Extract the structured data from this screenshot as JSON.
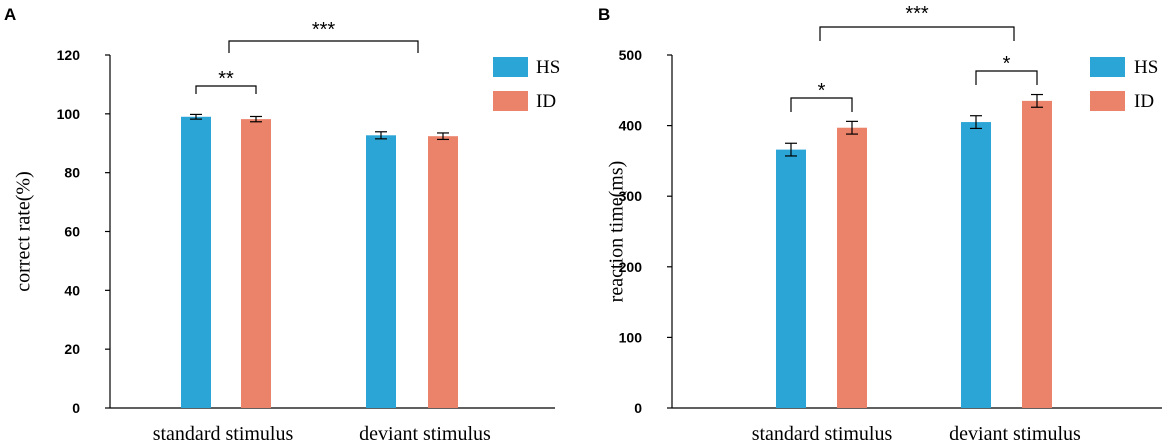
{
  "colors": {
    "HS": "#2aa5d6",
    "ID": "#eb826a"
  },
  "chart_data": [
    {
      "type": "bar",
      "panel": "A",
      "ylabel": "correct rate(%)",
      "xlabel": "",
      "ylim": [
        0,
        120
      ],
      "yticks": [
        "0",
        "20",
        "40",
        "60",
        "80",
        "100",
        "120"
      ],
      "categories": [
        "standard stimulus",
        "deviant stimulus"
      ],
      "legend": [
        "HS",
        "ID"
      ],
      "legend_position": "top-right",
      "series": [
        {
          "name": "HS",
          "values": [
            99,
            92.7
          ],
          "errors": [
            0.8,
            1.2
          ]
        },
        {
          "name": "ID",
          "values": [
            98.2,
            92.4
          ],
          "errors": [
            0.9,
            1.1
          ]
        }
      ],
      "annotations": [
        {
          "label": "**",
          "between": "standard stimulus HS vs ID"
        },
        {
          "label": "***",
          "between": "standard stimulus vs deviant stimulus"
        }
      ]
    },
    {
      "type": "bar",
      "panel": "B",
      "ylabel": "reaction time(ms)",
      "xlabel": "",
      "ylim": [
        0,
        500
      ],
      "yticks": [
        "0",
        "100",
        "200",
        "300",
        "400",
        "500"
      ],
      "categories": [
        "standard stimulus",
        "deviant stimulus"
      ],
      "legend": [
        "HS",
        "ID"
      ],
      "legend_position": "top-right",
      "series": [
        {
          "name": "HS",
          "values": [
            366,
            405
          ],
          "errors": [
            9,
            9
          ]
        },
        {
          "name": "ID",
          "values": [
            397,
            435
          ],
          "errors": [
            9,
            9
          ]
        }
      ],
      "annotations": [
        {
          "label": "*",
          "between": "standard stimulus HS vs ID"
        },
        {
          "label": "*",
          "between": "deviant stimulus HS vs ID"
        },
        {
          "label": "***",
          "between": "standard stimulus vs deviant stimulus"
        }
      ]
    }
  ]
}
